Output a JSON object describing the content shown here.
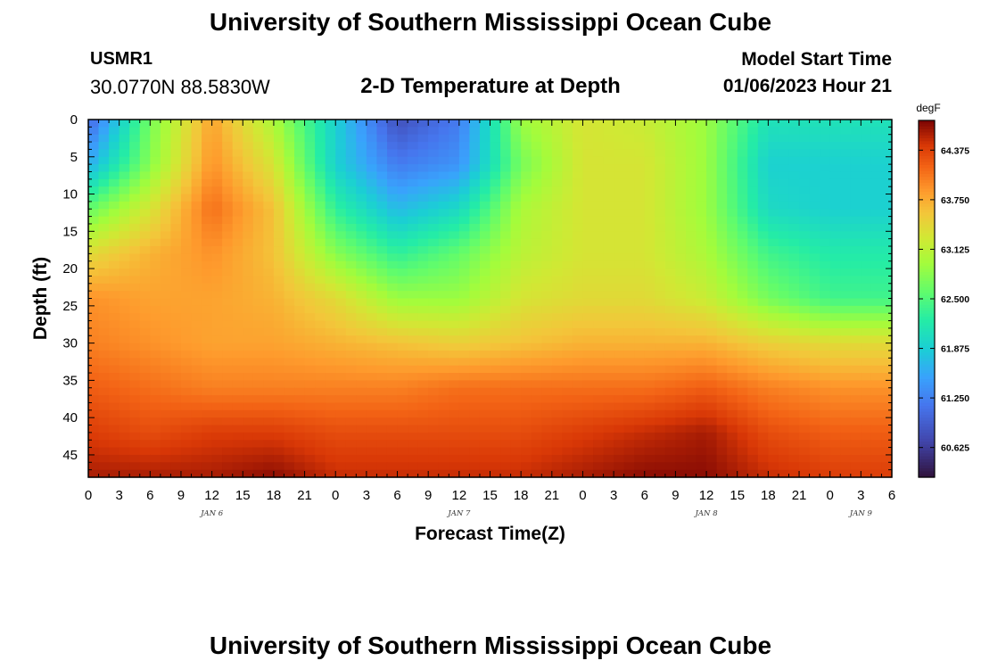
{
  "header": {
    "title": "University of Southern Mississippi Ocean Cube",
    "station_id": "USMR1",
    "station_location": "30.0770N  88.5830W",
    "subtitle": "2-D Temperature at Depth",
    "model_start_label": "Model Start Time",
    "model_start_value": "01/06/2023 Hour 21"
  },
  "footer": {
    "title": "University of Southern Mississippi Ocean Cube"
  },
  "chart_data": {
    "type": "heatmap",
    "title": "2-D Temperature at Depth",
    "xlabel": "Forecast Time(Z)",
    "ylabel": "Depth (ft)",
    "x_tick_labels": [
      "0",
      "3",
      "6",
      "9",
      "12",
      "15",
      "18",
      "21",
      "0",
      "3",
      "6",
      "9",
      "12",
      "15",
      "18",
      "21",
      "0",
      "3",
      "6",
      "9",
      "12",
      "15",
      "18",
      "21",
      "0",
      "3",
      "6"
    ],
    "x_range_hours": [
      0,
      78
    ],
    "day_labels": [
      {
        "label": "JAN 6",
        "hour": 12
      },
      {
        "label": "JAN 7",
        "hour": 36
      },
      {
        "label": "JAN 8",
        "hour": 60
      },
      {
        "label": "JAN 9",
        "hour": 75
      }
    ],
    "y_ticks": [
      0,
      5,
      10,
      15,
      20,
      25,
      30,
      35,
      40,
      45
    ],
    "y_range": [
      0,
      48
    ],
    "y_inverted": true,
    "colorbar": {
      "unit": "degF",
      "range": [
        60.25,
        64.75
      ],
      "tick_values": [
        64.375,
        63.75,
        63.125,
        62.5,
        61.875,
        61.25,
        60.625
      ],
      "tick_labels": [
        "64.375",
        "63.750",
        "63.125",
        "62.500",
        "61.875",
        "61.250",
        "60.625"
      ]
    },
    "grid_hours": [
      0,
      6,
      12,
      18,
      24,
      30,
      36,
      42,
      48,
      54,
      60,
      66,
      72,
      78
    ],
    "grid_depths": [
      0,
      6,
      12,
      18,
      24,
      30,
      36,
      42,
      48
    ],
    "temperature_grid": [
      [
        61.0,
        62.7,
        63.8,
        63.0,
        61.9,
        60.8,
        61.2,
        62.9,
        63.3,
        63.2,
        62.9,
        62.1,
        62.1,
        62.1
      ],
      [
        61.6,
        62.8,
        63.9,
        63.3,
        61.9,
        61.2,
        61.4,
        62.7,
        63.3,
        63.3,
        62.9,
        61.9,
        61.9,
        61.9
      ],
      [
        62.6,
        63.3,
        64.1,
        63.6,
        62.3,
        61.7,
        62.0,
        63.0,
        63.3,
        63.3,
        62.9,
        62.0,
        61.9,
        61.9
      ],
      [
        63.4,
        63.7,
        63.9,
        63.6,
        62.8,
        62.3,
        62.6,
        63.1,
        63.3,
        63.3,
        63.0,
        62.4,
        62.2,
        62.2
      ],
      [
        63.9,
        63.8,
        63.8,
        63.7,
        63.4,
        62.9,
        62.9,
        63.3,
        63.4,
        63.4,
        63.2,
        62.7,
        62.4,
        62.4
      ],
      [
        64.0,
        63.9,
        63.8,
        63.8,
        63.7,
        63.6,
        63.5,
        63.6,
        63.7,
        63.7,
        63.7,
        63.5,
        63.4,
        63.4
      ],
      [
        64.2,
        64.1,
        64.0,
        64.0,
        64.0,
        64.0,
        64.1,
        64.1,
        64.1,
        64.1,
        64.2,
        64.0,
        63.9,
        63.9
      ],
      [
        64.4,
        64.3,
        64.4,
        64.4,
        64.3,
        64.3,
        64.3,
        64.3,
        64.4,
        64.5,
        64.6,
        64.3,
        64.2,
        64.2
      ],
      [
        64.6,
        64.6,
        64.6,
        64.7,
        64.5,
        64.5,
        64.5,
        64.5,
        64.6,
        64.7,
        64.7,
        64.5,
        64.4,
        64.4
      ]
    ]
  }
}
